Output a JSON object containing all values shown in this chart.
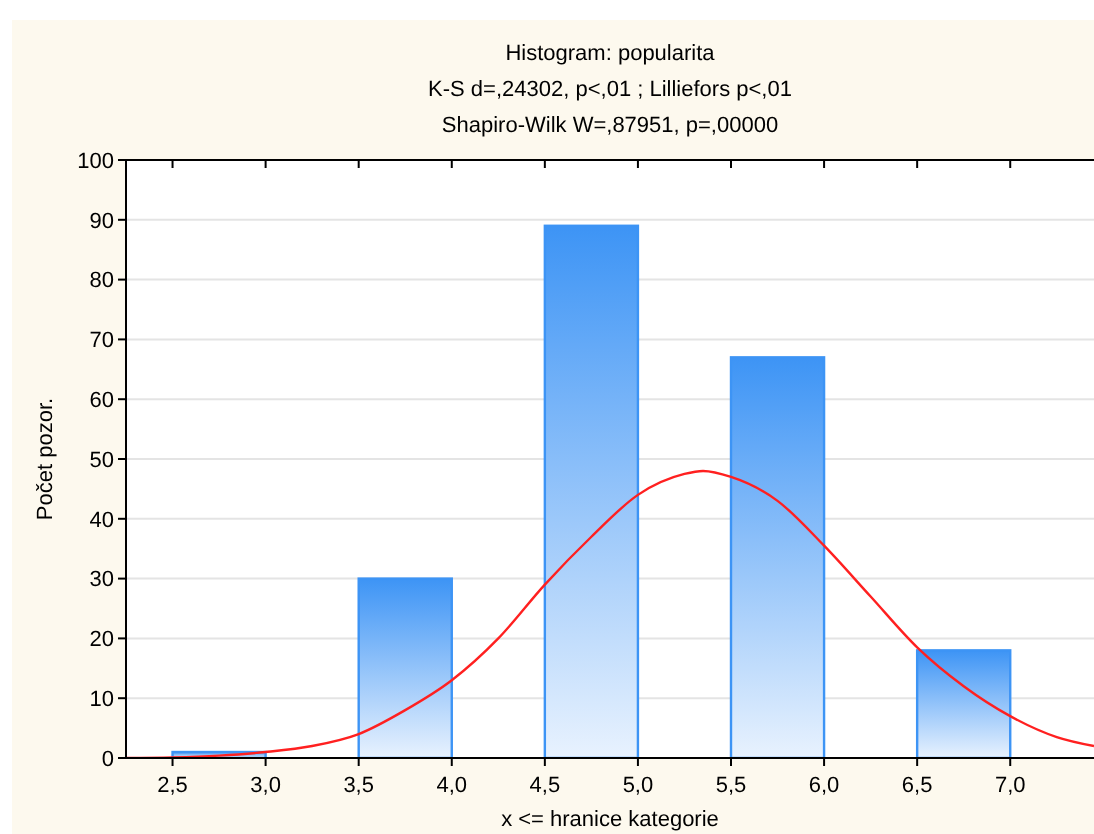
{
  "chart_data": {
    "type": "histogram",
    "title": "Histogram: popularita",
    "subtitle": [
      "K-S d=,24302, p<,01 ; Lilliefors p<,01",
      "Shapiro-Wilk W=,87951, p=,00000"
    ],
    "xlabel": "x <= hranice kategorie",
    "ylabel": "Počet pozor.",
    "bins": [
      2.5,
      3.0,
      3.5,
      4.0,
      4.5,
      5.0,
      5.5,
      6.0,
      6.5,
      7.0
    ],
    "values": [
      1,
      0,
      30,
      0,
      89,
      0,
      67,
      0,
      18
    ],
    "color": "#3d94f5",
    "series": [
      {
        "type": "line",
        "color": "#ff2020",
        "x": [
          2.25,
          2.5,
          2.75,
          3.0,
          3.25,
          3.5,
          3.75,
          4.0,
          4.25,
          4.5,
          4.75,
          5.0,
          5.25,
          5.35,
          5.5,
          5.75,
          6.0,
          6.25,
          6.5,
          6.75,
          7.0,
          7.25,
          7.45
        ],
        "values": [
          0,
          0.1,
          0.4,
          1,
          2,
          4,
          8,
          13,
          20,
          29,
          37,
          44,
          47.5,
          48,
          47,
          43,
          35.5,
          27,
          18.5,
          12,
          7,
          3.5,
          2
        ]
      }
    ],
    "xlim": [
      2.25,
      7.45
    ],
    "ylim": [
      0,
      100
    ],
    "xticks": [
      {
        "value": 2.5,
        "label": "2,5"
      },
      {
        "value": 3.0,
        "label": "3,0"
      },
      {
        "value": 3.5,
        "label": "3,5"
      },
      {
        "value": 4.0,
        "label": "4,0"
      },
      {
        "value": 4.5,
        "label": "4,5"
      },
      {
        "value": 5.0,
        "label": "5,0"
      },
      {
        "value": 5.5,
        "label": "5,5"
      },
      {
        "value": 6.0,
        "label": "6,0"
      },
      {
        "value": 6.5,
        "label": "6,5"
      },
      {
        "value": 7.0,
        "label": "7,0"
      }
    ],
    "yticks": [
      0,
      10,
      20,
      30,
      40,
      50,
      60,
      70,
      80,
      90,
      100
    ],
    "grid": "y"
  }
}
